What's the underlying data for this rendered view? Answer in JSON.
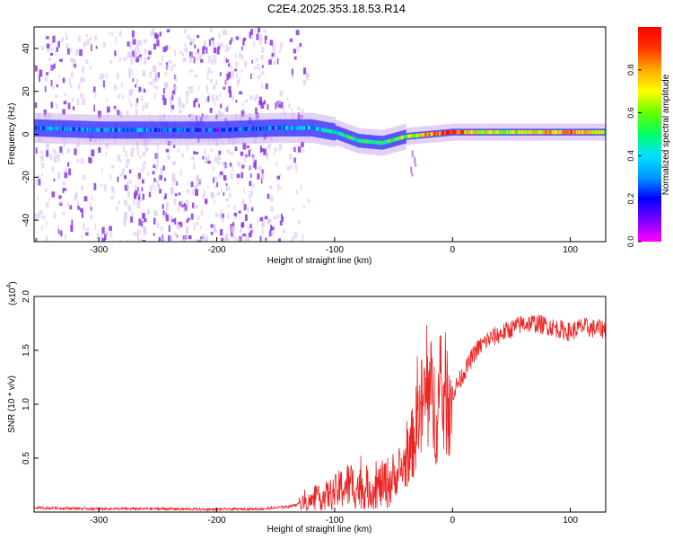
{
  "title": "C2E4.2025.353.18.53.R14",
  "colors": {
    "axis": "#000000",
    "snr_line": "#ee2222",
    "spec_band": "#3a3aff",
    "spec_noise": "#8a3adf",
    "colorbar": [
      "#ff00ff",
      "#7b00ff",
      "#0000ff",
      "#0099ff",
      "#00e0ff",
      "#00ff66",
      "#66ff00",
      "#ffff00",
      "#ffaa00",
      "#ff3300",
      "#ff0000"
    ]
  },
  "chart_data": [
    {
      "type": "heatmap",
      "title": "C2E4.2025.353.18.53.R14",
      "xlabel": "Height of straight line (km)",
      "ylabel": "Frequency (Hz)",
      "xlim": [
        -355,
        130
      ],
      "ylim": [
        -50,
        50
      ],
      "xticks": [
        -300,
        -200,
        -100,
        0,
        100
      ],
      "xtick_labels": [
        "-300",
        "-200",
        "-100",
        "0",
        "100"
      ],
      "yticks": [
        -40,
        -20,
        0,
        20,
        40
      ],
      "ytick_labels": [
        "-40",
        "-20",
        "0",
        "20",
        "40"
      ],
      "colorbar": {
        "label": "Normalized spectral amplitude",
        "range": [
          0,
          1
        ],
        "ticks": [
          0.0,
          0.2,
          0.4,
          0.6,
          0.8
        ],
        "tick_labels": [
          "0.0",
          "0.2",
          "0.4",
          "0.6",
          "0.8"
        ]
      },
      "center_band": {
        "x": [
          -355,
          -300,
          -250,
          -200,
          -150,
          -120,
          -100,
          -80,
          -60,
          -40,
          -20,
          0,
          20,
          50,
          80,
          100,
          130
        ],
        "freq": [
          3,
          2,
          2,
          2,
          3,
          3,
          1,
          -3,
          -4,
          -1,
          0,
          1,
          1,
          1,
          1,
          1,
          1
        ],
        "amplitude": [
          0.3,
          0.3,
          0.25,
          0.2,
          0.3,
          0.35,
          0.45,
          0.45,
          0.5,
          0.6,
          0.8,
          0.9,
          0.7,
          0.6,
          0.75,
          0.8,
          0.65
        ]
      },
      "noise_region_x": [
        -355,
        -140
      ]
    },
    {
      "type": "line",
      "xlabel": "Height of straight line (km)",
      "ylabel": "SNR (10 * v/v)",
      "y_scale_label": "(x10",
      "y_scale_exp": "4",
      "xlim": [
        -355,
        130
      ],
      "ylim": [
        0,
        20000
      ],
      "xticks": [
        -300,
        -200,
        -100,
        0,
        100
      ],
      "xtick_labels": [
        "-300",
        "-200",
        "-100",
        "0",
        "100"
      ],
      "yticks": [
        5000,
        10000,
        15000,
        20000
      ],
      "ytick_labels": [
        "0.5",
        "1.0",
        "1.5",
        "2.0"
      ],
      "series": [
        {
          "name": "SNR",
          "x": [
            -355,
            -300,
            -250,
            -200,
            -160,
            -140,
            -120,
            -100,
            -90,
            -80,
            -70,
            -60,
            -50,
            -40,
            -35,
            -30,
            -25,
            -20,
            -15,
            -10,
            -5,
            0,
            10,
            20,
            30,
            40,
            50,
            60,
            70,
            80,
            90,
            100,
            110,
            120,
            130
          ],
          "y": [
            400,
            300,
            300,
            250,
            300,
            500,
            1000,
            1800,
            2500,
            2300,
            2000,
            2500,
            3000,
            4500,
            6000,
            8000,
            10000,
            11000,
            9500,
            10000,
            11000,
            11000,
            13000,
            15000,
            16000,
            16500,
            17000,
            17500,
            17500,
            17300,
            17000,
            16700,
            17200,
            17000,
            17000
          ]
        }
      ]
    }
  ]
}
